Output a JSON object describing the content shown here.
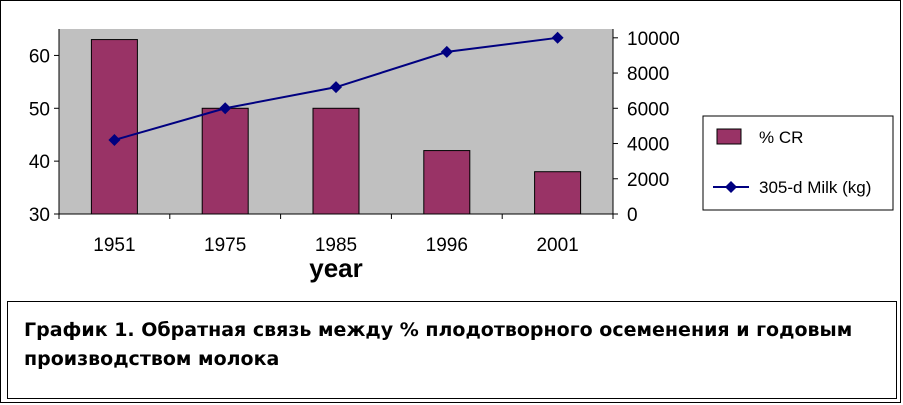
{
  "chart_data": {
    "type": "bar",
    "categories": [
      "1951",
      "1975",
      "1985",
      "1996",
      "2001"
    ],
    "xlabel": "year",
    "series": [
      {
        "name": "% CR",
        "type": "bar",
        "axis": "left",
        "values": [
          63,
          50,
          50,
          42,
          38
        ],
        "color": "#993366"
      },
      {
        "name": "305-d Milk (kg)",
        "type": "line",
        "axis": "right",
        "values": [
          4200,
          6000,
          7200,
          9200,
          10000
        ],
        "color": "#000080"
      }
    ],
    "y_left": {
      "min": 30,
      "max": 65,
      "ticks": [
        30,
        40,
        50,
        60
      ]
    },
    "y_right": {
      "min": 0,
      "max": 10500,
      "ticks": [
        0,
        2000,
        4000,
        6000,
        8000,
        10000
      ]
    },
    "plot_background": "#c0c0c0",
    "legend_position": "right",
    "grid": false
  },
  "caption": "График 1. Обратная связь между % плодотворного осеменения и годовым производством молока"
}
